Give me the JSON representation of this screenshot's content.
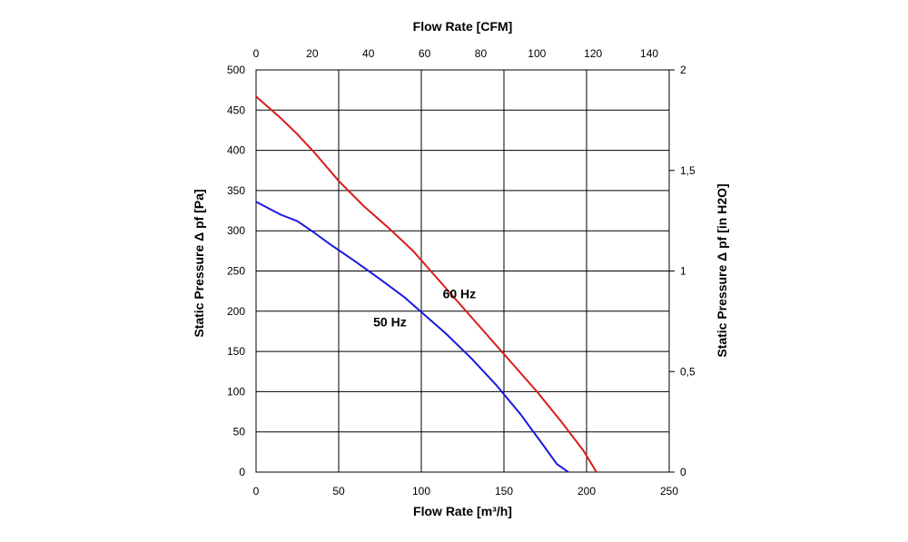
{
  "chart_data": {
    "type": "line",
    "title": "",
    "xlabel_bottom": "Flow Rate [m³/h]",
    "xlabel_top": "Flow Rate [CFM]",
    "ylabel_left": "Static Pressure Δ pf [Pa]",
    "ylabel_right": "Static Pressure Δ pf [in H2O]",
    "xlim": [
      0,
      250
    ],
    "ylim": [
      0,
      500
    ],
    "xlim_top": [
      0,
      147.1
    ],
    "ylim_right": [
      0,
      2
    ],
    "x_ticks": [
      "0",
      "50",
      "100",
      "150",
      "200",
      "250"
    ],
    "y_ticks": [
      "0",
      "50",
      "100",
      "150",
      "200",
      "250",
      "300",
      "350",
      "400",
      "450",
      "500"
    ],
    "x_top_ticks": [
      "0",
      "20",
      "40",
      "60",
      "80",
      "100",
      "120",
      "140"
    ],
    "y_right_ticks": [
      "0",
      "0,5",
      "1",
      "1,5",
      "2"
    ],
    "grid": true,
    "series": [
      {
        "name": "50 Hz",
        "color": "#1a1adf",
        "points": [
          [
            0,
            336
          ],
          [
            15,
            320
          ],
          [
            25,
            312
          ],
          [
            35,
            298
          ],
          [
            45,
            283
          ],
          [
            60,
            262
          ],
          [
            75,
            240
          ],
          [
            90,
            217
          ],
          [
            100,
            199
          ],
          [
            115,
            172
          ],
          [
            130,
            142
          ],
          [
            145,
            109
          ],
          [
            160,
            72
          ],
          [
            175,
            30
          ],
          [
            182,
            10
          ],
          [
            189,
            0
          ]
        ]
      },
      {
        "name": "60 Hz",
        "color": "#d91a1a",
        "points": [
          [
            0,
            467
          ],
          [
            15,
            440
          ],
          [
            25,
            420
          ],
          [
            35,
            398
          ],
          [
            50,
            362
          ],
          [
            65,
            331
          ],
          [
            80,
            304
          ],
          [
            95,
            275
          ],
          [
            110,
            240
          ],
          [
            125,
            205
          ],
          [
            140,
            170
          ],
          [
            155,
            135
          ],
          [
            170,
            100
          ],
          [
            185,
            62
          ],
          [
            198,
            27
          ],
          [
            206,
            0
          ]
        ]
      }
    ],
    "series_labels": [
      {
        "text": "50 Hz",
        "x": 81,
        "y": 181
      },
      {
        "text": "60 Hz",
        "x": 123,
        "y": 216
      }
    ]
  }
}
